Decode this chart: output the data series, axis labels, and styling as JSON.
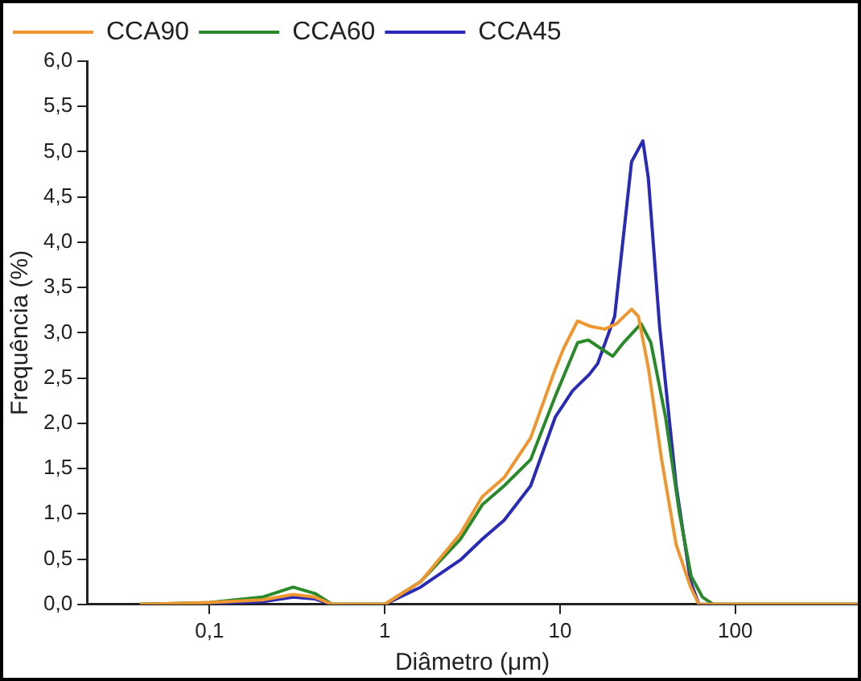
{
  "chart_data": {
    "type": "line",
    "xlabel": "Diâmetro (μm)",
    "ylabel": "Frequência (%)",
    "log": "x",
    "xlim": [
      0.02,
      500
    ],
    "xticks": [
      {
        "value": 0.1,
        "label": "0,1"
      },
      1,
      10,
      100
    ],
    "ylim": [
      0,
      6
    ],
    "yticks": [
      {
        "value": 0,
        "label": "0,0"
      },
      {
        "value": 0.5,
        "label": "0,5"
      },
      {
        "value": 1,
        "label": "1,0"
      },
      {
        "value": 1.5,
        "label": "1,5"
      },
      {
        "value": 2,
        "label": "2,0"
      },
      {
        "value": 2.5,
        "label": "2,5"
      },
      {
        "value": 3,
        "label": "3,0"
      },
      {
        "value": 3.5,
        "label": "3,5"
      },
      {
        "value": 4,
        "label": "4,0"
      },
      {
        "value": 4.5,
        "label": "4,5"
      },
      {
        "value": 5,
        "label": "5,0"
      },
      {
        "value": 5.5,
        "label": "5,5"
      },
      {
        "value": 6,
        "label": "6,0"
      }
    ],
    "grid": false,
    "legend": "top left",
    "marker": "none",
    "line_style": "solid",
    "series": [
      {
        "name": "CCA90",
        "color": "#f0962e",
        "x": [
          0.04,
          0.1,
          0.2,
          0.3,
          0.4,
          0.5,
          1,
          1.6,
          2.7,
          3.6,
          4.8,
          6.8,
          9.4,
          10.5,
          12.6,
          15,
          18,
          21,
          25.6,
          28,
          32,
          38,
          46,
          55.6,
          62,
          500
        ],
        "values": [
          0,
          0.02,
          0.05,
          0.11,
          0.08,
          0,
          0,
          0.25,
          0.78,
          1.19,
          1.4,
          1.84,
          2.6,
          2.83,
          3.13,
          3.07,
          3.04,
          3.1,
          3.26,
          3.18,
          2.6,
          1.6,
          0.66,
          0.19,
          0,
          0
        ]
      },
      {
        "name": "CCA60",
        "color": "#2a8a2a",
        "x": [
          0.04,
          0.1,
          0.2,
          0.3,
          0.4,
          0.5,
          1,
          1.6,
          2.7,
          3.6,
          4.8,
          6.8,
          9.4,
          12.6,
          14.5,
          17,
          20,
          23,
          29,
          33,
          40,
          48,
          56,
          65,
          75,
          500
        ],
        "values": [
          0,
          0.02,
          0.08,
          0.19,
          0.12,
          0,
          0,
          0.25,
          0.72,
          1.1,
          1.31,
          1.6,
          2.3,
          2.89,
          2.92,
          2.83,
          2.74,
          2.89,
          3.1,
          2.89,
          2.07,
          1.01,
          0.31,
          0.08,
          0,
          0
        ]
      },
      {
        "name": "CCA45",
        "color": "#2a2ab8",
        "x": [
          0.04,
          0.1,
          0.2,
          0.3,
          0.4,
          0.5,
          1,
          1.6,
          2.7,
          3.6,
          4.8,
          6.8,
          9.4,
          11.8,
          14.7,
          16.4,
          20.5,
          25.6,
          29.7,
          31.9,
          37,
          46,
          55.6,
          62,
          500
        ],
        "values": [
          0,
          0.01,
          0.03,
          0.08,
          0.06,
          0,
          0,
          0.19,
          0.49,
          0.72,
          0.93,
          1.31,
          2.07,
          2.36,
          2.54,
          2.66,
          3.18,
          4.89,
          5.12,
          4.71,
          3.07,
          1.31,
          0.25,
          0,
          0
        ]
      }
    ]
  }
}
